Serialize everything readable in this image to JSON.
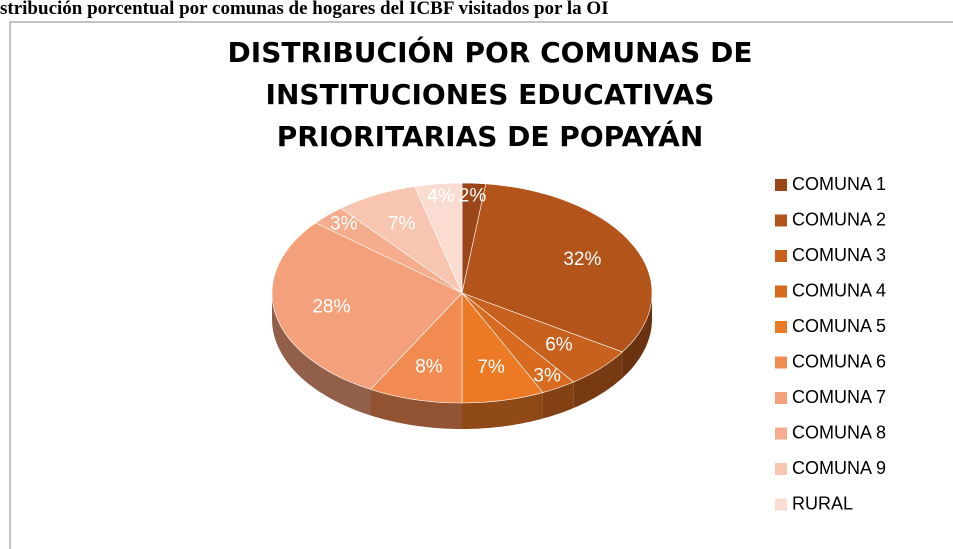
{
  "chart_data": {
    "type": "pie",
    "caption": "stribución porcentual por comunas de hogares del ICBF visitados por la OI",
    "title": "DISTRIBUCIÓN POR COMUNAS DE INSTITUCIONES EDUCATIVAS PRIORITARIAS DE POPAYÁN",
    "categories": [
      "COMUNA 1",
      "COMUNA 2",
      "COMUNA 3",
      "COMUNA 4",
      "COMUNA 5",
      "COMUNA 6",
      "COMUNA 7",
      "COMUNA 8",
      "COMUNA 9",
      "RURAL"
    ],
    "values": [
      2,
      32,
      6,
      3,
      7,
      8,
      28,
      3,
      7,
      4
    ],
    "value_labels": [
      "2%",
      "32%",
      "6%",
      "3%",
      "7%",
      "8%",
      "28%",
      "3%",
      "7%",
      "4%"
    ],
    "colors": [
      "#9a4618",
      "#b3541b",
      "#c8611e",
      "#d96b20",
      "#ec7924",
      "#f28b52",
      "#f4a07b",
      "#f5ad8e",
      "#f7c5b0",
      "#fadcd1"
    ],
    "legend": "right"
  }
}
